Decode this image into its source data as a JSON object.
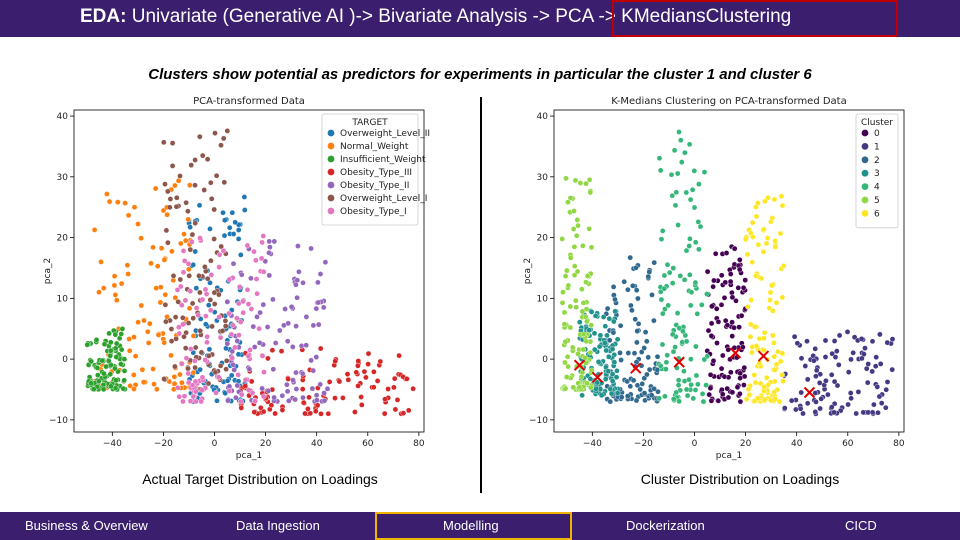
{
  "header": {
    "title_bold": "EDA:",
    "title_rest": " Univariate (Generative AI )-> Bivariate Analysis -> ",
    "title_highlight": "PCA -> KMediansClustering"
  },
  "subtitle": "Clusters show potential as predictors for experiments in particular the cluster 1 and cluster 6",
  "captions": {
    "left": "Actual Target Distribution on Loadings",
    "right": "Cluster Distribution on Loadings"
  },
  "nav": {
    "items": [
      "Business & Overview",
      "Data Ingestion",
      "Modelling",
      "Dockerization",
      "CICD"
    ],
    "active": "Modelling"
  },
  "chart_data": [
    {
      "type": "scatter",
      "title": "PCA-transformed Data",
      "xlabel": "pca_1",
      "ylabel": "pca_2",
      "xlim": [
        -55,
        82
      ],
      "ylim": [
        -12,
        41
      ],
      "xticks": [
        -40,
        -20,
        0,
        20,
        40,
        60,
        80
      ],
      "yticks": [
        -10,
        0,
        10,
        20,
        30,
        40
      ],
      "grid": false,
      "legend_title": "TARGET",
      "legend_position": "top-right",
      "series": [
        {
          "name": "Overweight_Level_II",
          "color": "#1f77b4",
          "region": {
            "x": [
              -10,
              12
            ],
            "y": [
              -7,
              27
            ]
          }
        },
        {
          "name": "Normal_Weight",
          "color": "#ff7f0e",
          "region": {
            "x": [
              -47,
              -8
            ],
            "y": [
              -5,
              30
            ]
          }
        },
        {
          "name": "Insufficient_Weight",
          "color": "#2ca02c",
          "region": {
            "x": [
              -50,
              -35
            ],
            "y": [
              -5,
              5
            ]
          }
        },
        {
          "name": "Obesity_Type_III",
          "color": "#d62728",
          "region": {
            "x": [
              10,
              78
            ],
            "y": [
              -9,
              2
            ]
          }
        },
        {
          "name": "Obesity_Type_II",
          "color": "#9467bd",
          "region": {
            "x": [
              5,
              45
            ],
            "y": [
              -7,
              20
            ]
          }
        },
        {
          "name": "Overweight_Level_I",
          "color": "#8c564b",
          "region": {
            "x": [
              -20,
              5
            ],
            "y": [
              -5,
              38
            ]
          }
        },
        {
          "name": "Obesity_Type_I",
          "color": "#e377c2",
          "region": {
            "x": [
              -15,
              20
            ],
            "y": [
              -7,
              21
            ]
          }
        }
      ]
    },
    {
      "type": "scatter",
      "title": "K-Medians Clustering on PCA-transformed Data",
      "xlabel": "pca_1",
      "ylabel": "pca_2",
      "xlim": [
        -55,
        82
      ],
      "ylim": [
        -12,
        41
      ],
      "xticks": [
        -40,
        -20,
        0,
        20,
        40,
        60,
        80
      ],
      "yticks": [
        -10,
        0,
        10,
        20,
        30,
        40
      ],
      "grid": false,
      "legend_title": "Cluster",
      "legend_position": "top-right",
      "series": [
        {
          "name": "0",
          "color": "#440154",
          "region": {
            "x": [
              5,
              20
            ],
            "y": [
              -7,
              19
            ]
          }
        },
        {
          "name": "1",
          "color": "#443983",
          "region": {
            "x": [
              35,
              78
            ],
            "y": [
              -9,
              5
            ]
          }
        },
        {
          "name": "2",
          "color": "#31688e",
          "region": {
            "x": [
              -35,
              -14
            ],
            "y": [
              -7,
              17
            ]
          }
        },
        {
          "name": "3",
          "color": "#21918c",
          "region": {
            "x": [
              -45,
              -30
            ],
            "y": [
              -6,
              8
            ]
          }
        },
        {
          "name": "4",
          "color": "#35b779",
          "region": {
            "x": [
              -14,
              5
            ],
            "y": [
              -7,
              38
            ]
          }
        },
        {
          "name": "5",
          "color": "#90d743",
          "region": {
            "x": [
              -52,
              -40
            ],
            "y": [
              -5,
              30
            ]
          }
        },
        {
          "name": "6",
          "color": "#fde725",
          "region": {
            "x": [
              20,
              35
            ],
            "y": [
              -7,
              28
            ]
          }
        }
      ],
      "centroids": [
        {
          "x": -45,
          "y": -1
        },
        {
          "x": -38,
          "y": -3
        },
        {
          "x": -23,
          "y": -1.5
        },
        {
          "x": -6,
          "y": -0.5
        },
        {
          "x": 16,
          "y": 1
        },
        {
          "x": 27,
          "y": 0.5
        },
        {
          "x": 45,
          "y": -5.5
        }
      ]
    }
  ]
}
